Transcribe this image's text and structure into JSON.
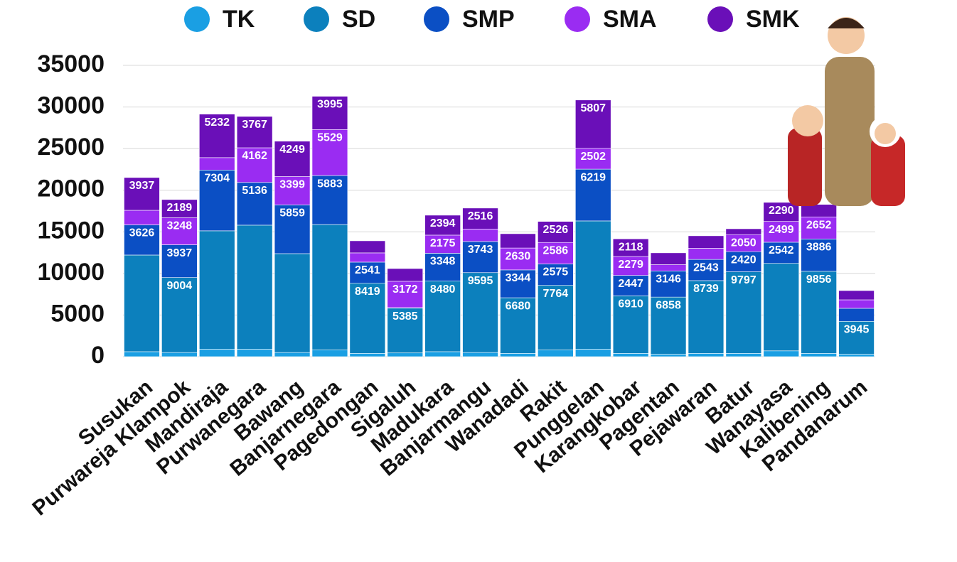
{
  "chart_data": {
    "type": "stacked_bar",
    "categories": [
      "Susukan",
      "Purwareja Klampok",
      "Mandiraja",
      "Purwanegara",
      "Bawang",
      "Banjarnegara",
      "Pagedongan",
      "Sigaluh",
      "Madukara",
      "Banjarmangu",
      "Wanadadi",
      "Rakit",
      "Punggelan",
      "Karangkobar",
      "Pagentan",
      "Pejawaran",
      "Batur",
      "Wanayasa",
      "Kalibening",
      "Pandanarum"
    ],
    "series": [
      {
        "name": "TK",
        "color": "#1a9fe3",
        "values": [
          600,
          500,
          900,
          900,
          500,
          800,
          400,
          450,
          600,
          500,
          400,
          800,
          900,
          400,
          300,
          400,
          400,
          700,
          400,
          300
        ],
        "value_labels": [
          null,
          null,
          null,
          null,
          null,
          null,
          null,
          null,
          null,
          null,
          null,
          null,
          null,
          null,
          null,
          null,
          null,
          null,
          null,
          null
        ]
      },
      {
        "name": "SD",
        "color": "#0c80bd",
        "values": [
          11610,
          9004,
          14220,
          14900,
          11880,
          15080,
          8419,
          5385,
          8480,
          9595,
          6680,
          7764,
          15410,
          6910,
          6858,
          8739,
          9797,
          10508,
          9856,
          3945
        ],
        "value_labels": [
          null,
          "9004",
          null,
          null,
          null,
          null,
          "8419",
          "5385",
          "8480",
          "9595",
          "6680",
          "7764",
          null,
          "6910",
          "6858",
          "8739",
          "9797",
          null,
          "9856",
          "3945"
        ]
      },
      {
        "name": "SMP",
        "color": "#0b4fc4",
        "values": [
          3626,
          3937,
          7304,
          5136,
          5859,
          5883,
          2541,
          50,
          3348,
          3743,
          3344,
          2575,
          6219,
          2447,
          3146,
          2543,
          2420,
          2542,
          3886,
          1565
        ],
        "value_labels": [
          "3626",
          "3937",
          "7304",
          "5136",
          "5859",
          "5883",
          "2541",
          null,
          "3348",
          "3743",
          "3344",
          "2575",
          "6219",
          "2447",
          "3146",
          "2543",
          "2420",
          "2542",
          "3886",
          null
        ]
      },
      {
        "name": "SMA",
        "color": "#9a2cf2",
        "values": [
          1750,
          3248,
          1490,
          4162,
          3399,
          5529,
          1110,
          3172,
          2175,
          1500,
          2630,
          2586,
          2502,
          2279,
          750,
          1340,
          2050,
          2499,
          2652,
          1020
        ],
        "value_labels": [
          null,
          "3248",
          null,
          "4162",
          "3399",
          "5529",
          null,
          "3172",
          "2175",
          null,
          "2630",
          "2586",
          "2502",
          "2279",
          null,
          null,
          "2050",
          "2499",
          "2652",
          null
        ]
      },
      {
        "name": "SMK",
        "color": "#6a0fb8",
        "values": [
          3937,
          2189,
          5232,
          3767,
          4249,
          3995,
          1450,
          1530,
          2394,
          2516,
          1720,
          2526,
          5807,
          2118,
          1420,
          1500,
          700,
          2290,
          1500,
          1110
        ],
        "value_labels": [
          "3937",
          "2189",
          "5232",
          "3767",
          "4249",
          "3995",
          null,
          null,
          "2394",
          "2516",
          null,
          "2526",
          "5807",
          "2118",
          null,
          null,
          null,
          "2290",
          null,
          null
        ]
      }
    ],
    "ylim": [
      0,
      35000
    ],
    "yticks": [
      0,
      5000,
      10000,
      15000,
      20000,
      25000,
      30000,
      35000
    ],
    "grid": true,
    "legend": "top"
  }
}
